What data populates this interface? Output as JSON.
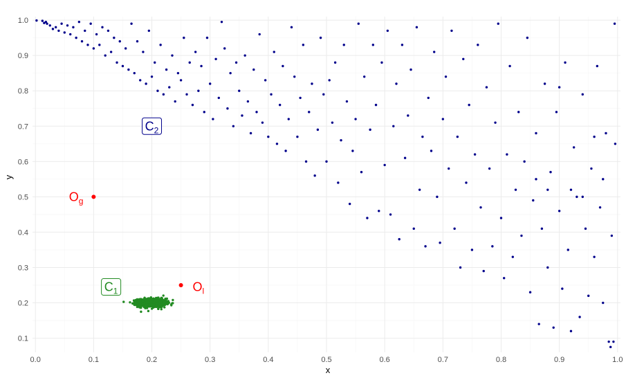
{
  "chart_data": {
    "type": "scatter",
    "xlabel": "x",
    "ylabel": "y",
    "xlim": [
      -0.005,
      1.005
    ],
    "ylim": [
      0.06,
      1.01
    ],
    "x_ticks": [
      "0.0",
      "0.1",
      "0.2",
      "0.3",
      "0.4",
      "0.5",
      "0.6",
      "0.7",
      "0.8",
      "0.9",
      "1.0"
    ],
    "y_ticks": [
      "0.1",
      "0.2",
      "0.3",
      "0.4",
      "0.5",
      "0.6",
      "0.7",
      "0.8",
      "0.9",
      "1.0"
    ],
    "grid": true,
    "series": [
      {
        "color": "#00008b",
        "points": [
          [
            0.002,
            0.999
          ],
          [
            0.012,
            0.998
          ],
          [
            0.018,
            0.995
          ],
          [
            0.02,
            0.99
          ],
          [
            0.025,
            0.985
          ],
          [
            0.015,
            0.992
          ],
          [
            0.03,
            0.975
          ],
          [
            0.035,
            0.98
          ],
          [
            0.04,
            0.97
          ],
          [
            0.045,
            0.99
          ],
          [
            0.05,
            0.965
          ],
          [
            0.055,
            0.985
          ],
          [
            0.06,
            0.96
          ],
          [
            0.065,
            0.98
          ],
          [
            0.07,
            0.95
          ],
          [
            0.075,
            0.995
          ],
          [
            0.08,
            0.94
          ],
          [
            0.085,
            0.97
          ],
          [
            0.09,
            0.93
          ],
          [
            0.095,
            0.99
          ],
          [
            0.1,
            0.92
          ],
          [
            0.105,
            0.96
          ],
          [
            0.11,
            0.93
          ],
          [
            0.115,
            0.98
          ],
          [
            0.12,
            0.9
          ],
          [
            0.125,
            0.97
          ],
          [
            0.13,
            0.91
          ],
          [
            0.135,
            0.95
          ],
          [
            0.14,
            0.88
          ],
          [
            0.145,
            0.94
          ],
          [
            0.15,
            0.87
          ],
          [
            0.155,
            0.92
          ],
          [
            0.16,
            0.86
          ],
          [
            0.165,
            0.99
          ],
          [
            0.17,
            0.85
          ],
          [
            0.175,
            0.94
          ],
          [
            0.18,
            0.83
          ],
          [
            0.185,
            0.91
          ],
          [
            0.19,
            0.82
          ],
          [
            0.195,
            0.97
          ],
          [
            0.2,
            0.84
          ],
          [
            0.205,
            0.88
          ],
          [
            0.21,
            0.8
          ],
          [
            0.215,
            0.93
          ],
          [
            0.22,
            0.79
          ],
          [
            0.225,
            0.86
          ],
          [
            0.23,
            0.81
          ],
          [
            0.235,
            0.9
          ],
          [
            0.24,
            0.77
          ],
          [
            0.245,
            0.85
          ],
          [
            0.25,
            0.83
          ],
          [
            0.255,
            0.95
          ],
          [
            0.26,
            0.79
          ],
          [
            0.265,
            0.88
          ],
          [
            0.27,
            0.76
          ],
          [
            0.275,
            0.91
          ],
          [
            0.28,
            0.8
          ],
          [
            0.285,
            0.87
          ],
          [
            0.29,
            0.74
          ],
          [
            0.295,
            0.95
          ],
          [
            0.3,
            0.82
          ],
          [
            0.305,
            0.72
          ],
          [
            0.31,
            0.89
          ],
          [
            0.315,
            0.78
          ],
          [
            0.32,
            0.995
          ],
          [
            0.325,
            0.92
          ],
          [
            0.33,
            0.75
          ],
          [
            0.335,
            0.85
          ],
          [
            0.34,
            0.7
          ],
          [
            0.345,
            0.88
          ],
          [
            0.35,
            0.8
          ],
          [
            0.355,
            0.73
          ],
          [
            0.36,
            0.9
          ],
          [
            0.365,
            0.77
          ],
          [
            0.37,
            0.68
          ],
          [
            0.375,
            0.86
          ],
          [
            0.38,
            0.74
          ],
          [
            0.385,
            0.96
          ],
          [
            0.39,
            0.71
          ],
          [
            0.395,
            0.83
          ],
          [
            0.4,
            0.67
          ],
          [
            0.405,
            0.79
          ],
          [
            0.41,
            0.91
          ],
          [
            0.415,
            0.65
          ],
          [
            0.42,
            0.76
          ],
          [
            0.425,
            0.87
          ],
          [
            0.43,
            0.63
          ],
          [
            0.435,
            0.72
          ],
          [
            0.44,
            0.98
          ],
          [
            0.445,
            0.84
          ],
          [
            0.45,
            0.67
          ],
          [
            0.455,
            0.78
          ],
          [
            0.46,
            0.93
          ],
          [
            0.465,
            0.6
          ],
          [
            0.47,
            0.74
          ],
          [
            0.475,
            0.82
          ],
          [
            0.48,
            0.56
          ],
          [
            0.485,
            0.69
          ],
          [
            0.49,
            0.95
          ],
          [
            0.495,
            0.79
          ],
          [
            0.5,
            0.6
          ],
          [
            0.505,
            0.83
          ],
          [
            0.51,
            0.71
          ],
          [
            0.515,
            0.88
          ],
          [
            0.52,
            0.54
          ],
          [
            0.525,
            0.66
          ],
          [
            0.53,
            0.93
          ],
          [
            0.535,
            0.77
          ],
          [
            0.54,
            0.48
          ],
          [
            0.545,
            0.63
          ],
          [
            0.55,
            0.72
          ],
          [
            0.555,
            0.99
          ],
          [
            0.56,
            0.57
          ],
          [
            0.565,
            0.84
          ],
          [
            0.57,
            0.44
          ],
          [
            0.575,
            0.69
          ],
          [
            0.58,
            0.93
          ],
          [
            0.585,
            0.76
          ],
          [
            0.59,
            0.46
          ],
          [
            0.595,
            0.88
          ],
          [
            0.6,
            0.59
          ],
          [
            0.605,
            0.97
          ],
          [
            0.61,
            0.45
          ],
          [
            0.615,
            0.7
          ],
          [
            0.62,
            0.82
          ],
          [
            0.625,
            0.38
          ],
          [
            0.63,
            0.93
          ],
          [
            0.635,
            0.61
          ],
          [
            0.64,
            0.73
          ],
          [
            0.645,
            0.86
          ],
          [
            0.65,
            0.41
          ],
          [
            0.655,
            0.98
          ],
          [
            0.66,
            0.52
          ],
          [
            0.665,
            0.67
          ],
          [
            0.67,
            0.36
          ],
          [
            0.675,
            0.78
          ],
          [
            0.68,
            0.63
          ],
          [
            0.685,
            0.91
          ],
          [
            0.69,
            0.5
          ],
          [
            0.695,
            0.37
          ],
          [
            0.7,
            0.72
          ],
          [
            0.705,
            0.84
          ],
          [
            0.71,
            0.58
          ],
          [
            0.715,
            0.97
          ],
          [
            0.72,
            0.41
          ],
          [
            0.725,
            0.67
          ],
          [
            0.73,
            0.3
          ],
          [
            0.735,
            0.89
          ],
          [
            0.74,
            0.54
          ],
          [
            0.745,
            0.76
          ],
          [
            0.75,
            0.35
          ],
          [
            0.755,
            0.62
          ],
          [
            0.76,
            0.93
          ],
          [
            0.765,
            0.47
          ],
          [
            0.77,
            0.29
          ],
          [
            0.775,
            0.81
          ],
          [
            0.78,
            0.58
          ],
          [
            0.785,
            0.36
          ],
          [
            0.79,
            0.71
          ],
          [
            0.795,
            0.99
          ],
          [
            0.8,
            0.44
          ],
          [
            0.805,
            0.27
          ],
          [
            0.81,
            0.62
          ],
          [
            0.815,
            0.87
          ],
          [
            0.82,
            0.33
          ],
          [
            0.825,
            0.52
          ],
          [
            0.83,
            0.74
          ],
          [
            0.835,
            0.39
          ],
          [
            0.84,
            0.6
          ],
          [
            0.845,
            0.95
          ],
          [
            0.85,
            0.23
          ],
          [
            0.855,
            0.49
          ],
          [
            0.86,
            0.68
          ],
          [
            0.865,
            0.14
          ],
          [
            0.87,
            0.41
          ],
          [
            0.875,
            0.82
          ],
          [
            0.88,
            0.3
          ],
          [
            0.885,
            0.57
          ],
          [
            0.89,
            0.13
          ],
          [
            0.895,
            0.74
          ],
          [
            0.9,
            0.46
          ],
          [
            0.905,
            0.24
          ],
          [
            0.91,
            0.88
          ],
          [
            0.915,
            0.35
          ],
          [
            0.92,
            0.12
          ],
          [
            0.925,
            0.64
          ],
          [
            0.93,
            0.5
          ],
          [
            0.935,
            0.16
          ],
          [
            0.94,
            0.79
          ],
          [
            0.945,
            0.41
          ],
          [
            0.95,
            0.22
          ],
          [
            0.955,
            0.58
          ],
          [
            0.96,
            0.33
          ],
          [
            0.965,
            0.87
          ],
          [
            0.97,
            0.47
          ],
          [
            0.975,
            0.2
          ],
          [
            0.98,
            0.68
          ],
          [
            0.985,
            0.09
          ],
          [
            0.99,
            0.39
          ],
          [
            0.995,
            0.99
          ],
          [
            0.996,
            0.65
          ],
          [
            0.993,
            0.09
          ],
          [
            0.988,
            0.075
          ],
          [
            0.975,
            0.55
          ],
          [
            0.96,
            0.67
          ],
          [
            0.94,
            0.5
          ],
          [
            0.92,
            0.52
          ],
          [
            0.9,
            0.81
          ],
          [
            0.88,
            0.52
          ],
          [
            0.86,
            0.55
          ]
        ]
      },
      {
        "color": "#228b22",
        "center": [
          0.2,
          0.2
        ],
        "count": 1000,
        "spread_x": 0.012,
        "spread_y": 0.006
      },
      {
        "color": "#ff0000",
        "points": [
          [
            0.1,
            0.5
          ],
          [
            0.25,
            0.25
          ]
        ]
      }
    ],
    "annotations": [
      {
        "key": "C2",
        "text": "C",
        "sub": "2",
        "x": 0.2,
        "y": 0.7,
        "color": "#00008b",
        "boxed": true
      },
      {
        "key": "Og",
        "text": "O",
        "sub": "g",
        "x": 0.07,
        "y": 0.5,
        "color": "#ff0000",
        "boxed": false
      },
      {
        "key": "C1",
        "text": "C",
        "sub": "1",
        "x": 0.13,
        "y": 0.245,
        "color": "#228b22",
        "boxed": true
      },
      {
        "key": "Ol",
        "text": "O",
        "sub": "l",
        "x": 0.28,
        "y": 0.245,
        "color": "#ff0000",
        "boxed": false
      }
    ]
  }
}
